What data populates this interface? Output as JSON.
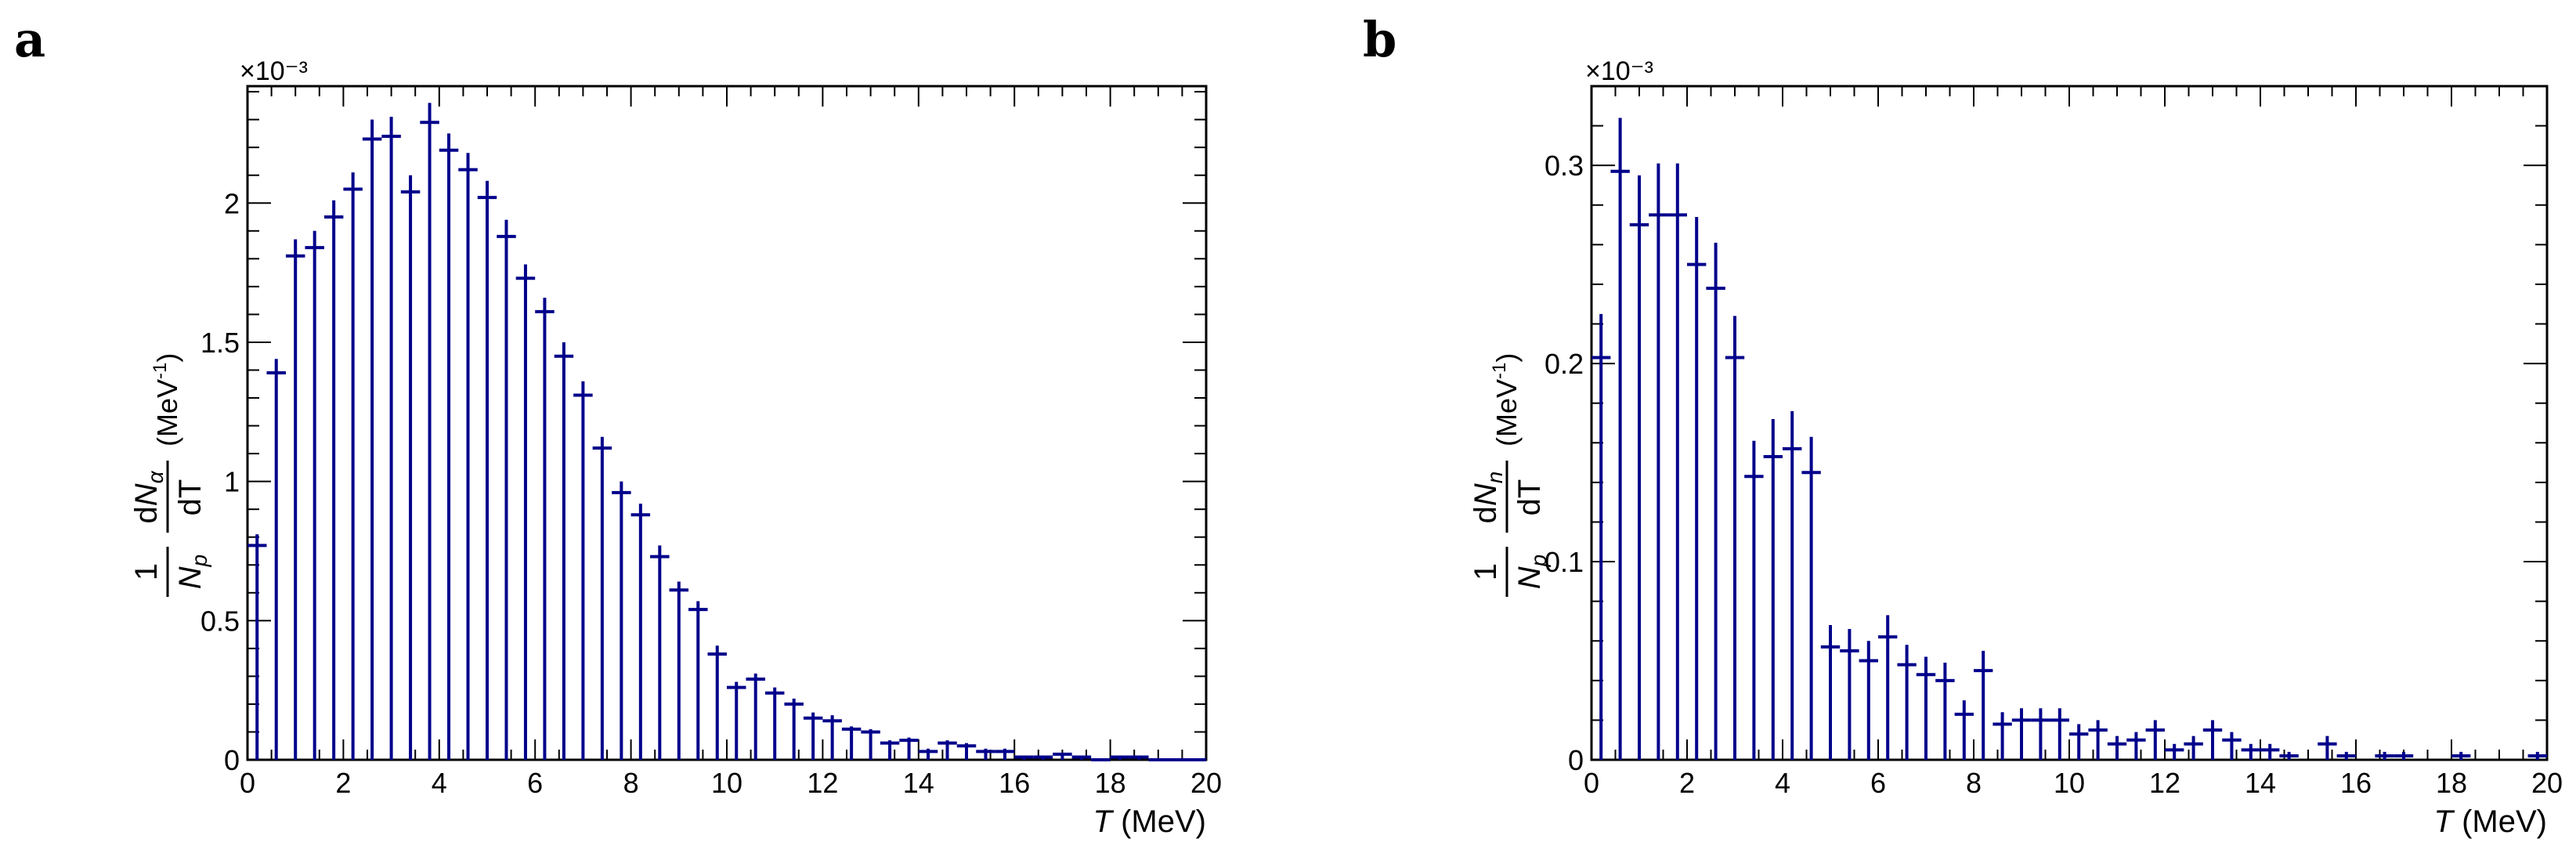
{
  "chart_data": [
    {
      "panel": "a",
      "type": "scatter",
      "error_bars": true,
      "multiplier": "×10⁻³",
      "xlabel_italic": "T",
      "xlabel_unit": "(MeV)",
      "ylabel": {
        "one": "1",
        "np_base": "N",
        "np_sub": "p",
        "num_d": "d",
        "num_base": "N",
        "num_sub": "α",
        "den": "dT",
        "unit": "(MeV",
        "unit_sup": "-1",
        "unit_close": ")"
      },
      "xlim": [
        0,
        20
      ],
      "ylim": [
        0,
        2.42
      ],
      "xticks": [
        0,
        2,
        4,
        6,
        8,
        10,
        12,
        14,
        16,
        18,
        20
      ],
      "xtick_labels": [
        "0",
        "2",
        "4",
        "6",
        "8",
        "10",
        "12",
        "14",
        "16",
        "18",
        "20"
      ],
      "yticks": [
        0,
        0.5,
        1,
        1.5,
        2
      ],
      "ytick_labels": [
        "0",
        "0.5",
        "1",
        "1.5",
        "2"
      ],
      "bin_width": 0.4,
      "color": "#00008b",
      "x": [
        0.2,
        0.6,
        1.0,
        1.4,
        1.8,
        2.2,
        2.6,
        3.0,
        3.4,
        3.8,
        4.2,
        4.6,
        5.0,
        5.4,
        5.8,
        6.2,
        6.6,
        7.0,
        7.4,
        7.8,
        8.2,
        8.6,
        9.0,
        9.4,
        9.8,
        10.2,
        10.6,
        11.0,
        11.4,
        11.8,
        12.2,
        12.6,
        13.0,
        13.4,
        13.8,
        14.2,
        14.6,
        15.0,
        15.4,
        15.8,
        16.2,
        16.6,
        17.0,
        17.4,
        17.8,
        18.2,
        18.6,
        19.0,
        19.4,
        19.8
      ],
      "y": [
        0.77,
        1.39,
        1.81,
        1.84,
        1.95,
        2.05,
        2.23,
        2.24,
        2.04,
        2.29,
        2.19,
        2.12,
        2.02,
        1.88,
        1.73,
        1.61,
        1.45,
        1.31,
        1.12,
        0.96,
        0.88,
        0.73,
        0.61,
        0.54,
        0.38,
        0.26,
        0.29,
        0.24,
        0.2,
        0.15,
        0.14,
        0.11,
        0.1,
        0.06,
        0.07,
        0.03,
        0.06,
        0.05,
        0.03,
        0.03,
        0.01,
        0.01,
        0.02,
        0.01,
        0.0,
        0.01,
        0.01,
        0.0,
        0.0,
        0.0
      ],
      "yerr": [
        0.04,
        0.05,
        0.06,
        0.06,
        0.06,
        0.06,
        0.07,
        0.07,
        0.06,
        0.07,
        0.06,
        0.06,
        0.06,
        0.06,
        0.05,
        0.05,
        0.05,
        0.05,
        0.04,
        0.04,
        0.04,
        0.04,
        0.03,
        0.03,
        0.03,
        0.02,
        0.02,
        0.02,
        0.02,
        0.02,
        0.02,
        0.01,
        0.01,
        0.01,
        0.01,
        0.01,
        0.01,
        0.01,
        0.01,
        0.01,
        0.005,
        0.005,
        0.005,
        0.005,
        0.005,
        0.005,
        0.005,
        0.005,
        0.005,
        0.005
      ]
    },
    {
      "panel": "b",
      "type": "scatter",
      "error_bars": true,
      "multiplier": "×10⁻³",
      "xlabel_italic": "T",
      "xlabel_unit": "(MeV)",
      "ylabel": {
        "one": "1",
        "np_base": "N",
        "np_sub": "p",
        "num_d": "d",
        "num_base": "N",
        "num_sub": "n",
        "den": "dT",
        "unit": "(MeV",
        "unit_sup": "-1",
        "unit_close": ")"
      },
      "xlim": [
        0,
        20
      ],
      "ylim": [
        0,
        0.34
      ],
      "xticks": [
        0,
        2,
        4,
        6,
        8,
        10,
        12,
        14,
        16,
        18,
        20
      ],
      "xtick_labels": [
        "0",
        "2",
        "4",
        "6",
        "8",
        "10",
        "12",
        "14",
        "16",
        "18",
        "20"
      ],
      "yticks": [
        0,
        0.1,
        0.2,
        0.3
      ],
      "ytick_labels": [
        "0",
        "0.1",
        "0.2",
        "0.3"
      ],
      "bin_width": 0.4,
      "color": "#00008b",
      "x": [
        0.2,
        0.6,
        1.0,
        1.4,
        1.8,
        2.2,
        2.6,
        3.0,
        3.4,
        3.8,
        4.2,
        4.6,
        5.0,
        5.4,
        5.8,
        6.2,
        6.6,
        7.0,
        7.4,
        7.8,
        8.2,
        8.6,
        9.0,
        9.4,
        9.8,
        10.2,
        10.6,
        11.0,
        11.4,
        11.8,
        12.2,
        12.6,
        13.0,
        13.4,
        13.8,
        14.2,
        14.6,
        15.4,
        15.8,
        16.6,
        17.0,
        18.2,
        19.8
      ],
      "y": [
        0.203,
        0.297,
        0.27,
        0.275,
        0.275,
        0.25,
        0.238,
        0.203,
        0.143,
        0.153,
        0.157,
        0.145,
        0.057,
        0.055,
        0.05,
        0.062,
        0.048,
        0.043,
        0.04,
        0.023,
        0.045,
        0.018,
        0.02,
        0.02,
        0.02,
        0.013,
        0.015,
        0.008,
        0.01,
        0.015,
        0.005,
        0.008,
        0.015,
        0.01,
        0.005,
        0.005,
        0.002,
        0.008,
        0.002,
        0.002,
        0.002,
        0.002,
        0.002
      ],
      "yerr": [
        0.022,
        0.027,
        0.025,
        0.026,
        0.026,
        0.024,
        0.023,
        0.021,
        0.018,
        0.019,
        0.019,
        0.018,
        0.011,
        0.011,
        0.01,
        0.011,
        0.01,
        0.009,
        0.009,
        0.007,
        0.01,
        0.006,
        0.006,
        0.006,
        0.006,
        0.005,
        0.005,
        0.004,
        0.004,
        0.005,
        0.003,
        0.004,
        0.005,
        0.004,
        0.003,
        0.003,
        0.002,
        0.004,
        0.002,
        0.002,
        0.002,
        0.002,
        0.002
      ]
    }
  ]
}
